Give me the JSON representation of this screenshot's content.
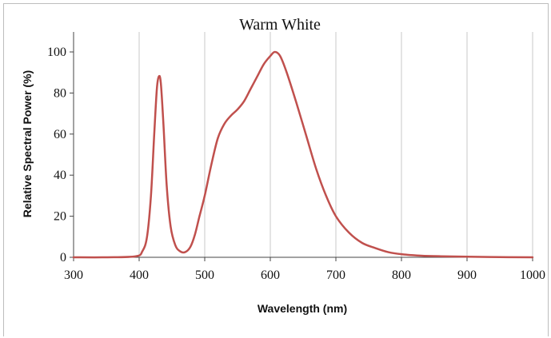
{
  "chart_data": {
    "type": "line",
    "title": "Warm White",
    "xlabel": "Wavelength (nm)",
    "ylabel": "Relative Spectral Power (%)",
    "xlim": [
      300,
      1000
    ],
    "ylim": [
      0,
      100
    ],
    "x_ticks": [
      300,
      400,
      500,
      600,
      700,
      800,
      900,
      1000
    ],
    "y_ticks": [
      0,
      20,
      40,
      60,
      80,
      100
    ],
    "grid": "vertical",
    "line_color": "#c0504d",
    "series": [
      {
        "x": [
          300,
          350,
          395,
          405,
          412,
          418,
          423,
          427,
          430,
          433,
          437,
          442,
          448,
          455,
          462,
          470,
          478,
          485,
          492,
          500,
          510,
          520,
          530,
          540,
          550,
          560,
          570,
          580,
          590,
          600,
          607,
          615,
          625,
          640,
          655,
          670,
          685,
          700,
          720,
          740,
          760,
          780,
          800,
          830,
          860,
          900,
          950,
          1000
        ],
        "y": [
          0,
          0,
          0.5,
          3,
          10,
          30,
          60,
          82,
          88,
          85,
          65,
          35,
          15,
          6,
          3,
          2.5,
          5,
          11,
          20,
          30,
          45,
          58,
          65,
          69,
          72,
          76,
          82,
          88,
          94,
          98,
          100,
          98,
          90,
          75,
          59,
          43,
          30,
          20,
          12,
          7,
          4.5,
          2.5,
          1.5,
          0.8,
          0.5,
          0.3,
          0.1,
          0
        ]
      }
    ]
  }
}
